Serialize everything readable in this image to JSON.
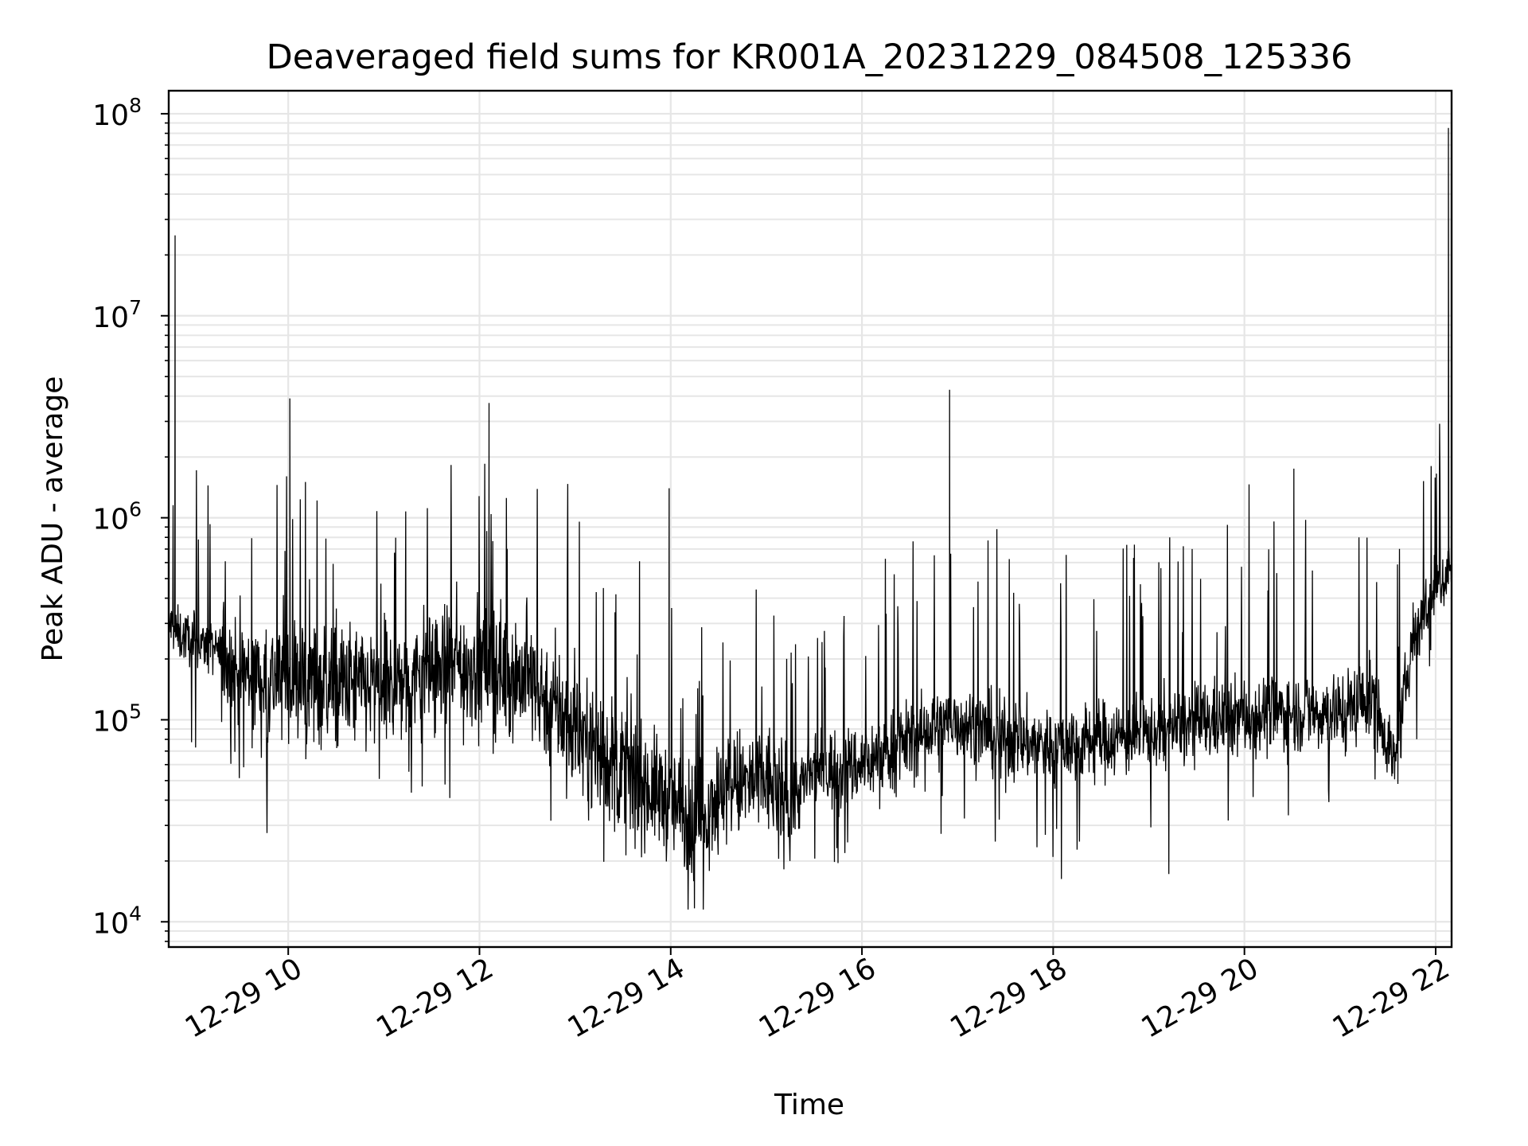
{
  "chart_data": {
    "type": "line",
    "title": "Deaveraged field sums for KR001A_20231229_084508_125336",
    "xlabel": "Time",
    "ylabel": "Peak ADU - average",
    "yscale": "log",
    "ylim": [
      7500,
      130000000
    ],
    "xlim": [
      "12-29 08:45",
      "12-29 22:10"
    ],
    "grid": true,
    "line_color": "#000000",
    "grid_color": "#e6e6e6",
    "x_ticks": [
      "12-29 10",
      "12-29 12",
      "12-29 14",
      "12-29 16",
      "12-29 18",
      "12-29 20",
      "12-29 22"
    ],
    "y_ticks": [
      {
        "value": 10000,
        "base": "10",
        "exp": "4"
      },
      {
        "value": 100000,
        "base": "10",
        "exp": "5"
      },
      {
        "value": 1000000,
        "base": "10",
        "exp": "6"
      },
      {
        "value": 10000000,
        "base": "10",
        "exp": "7"
      },
      {
        "value": 100000000,
        "base": "10",
        "exp": "8"
      }
    ],
    "series": [
      {
        "x": [
          "12-29 08:45",
          "12-29 08:52",
          "12-29 09:00",
          "12-29 09:15",
          "12-29 09:30",
          "12-29 09:45",
          "12-29 10:00",
          "12-29 10:30",
          "12-29 11:00",
          "12-29 11:30",
          "12-29 12:00",
          "12-29 12:30",
          "12-29 13:00",
          "12-29 13:30",
          "12-29 14:00",
          "12-29 14:15",
          "12-29 14:30",
          "12-29 15:00",
          "12-29 15:15",
          "12-29 15:30",
          "12-29 16:00",
          "12-29 16:30",
          "12-29 17:00",
          "12-29 17:30",
          "12-29 18:00",
          "12-29 18:30",
          "12-29 19:00",
          "12-29 19:30",
          "12-29 20:00",
          "12-29 20:30",
          "12-29 21:00",
          "12-29 21:20",
          "12-29 21:35",
          "12-29 21:45",
          "12-29 22:00",
          "12-29 22:05",
          "12-29 22:10"
        ],
        "y": [
          300000,
          260000,
          250000,
          220000,
          170000,
          160000,
          160000,
          150000,
          140000,
          180000,
          190000,
          160000,
          90000,
          55000,
          40000,
          30000,
          45000,
          50000,
          40000,
          55000,
          60000,
          80000,
          100000,
          80000,
          75000,
          80000,
          85000,
          95000,
          105000,
          110000,
          110000,
          130000,
          60000,
          250000,
          450000,
          500000,
          600000
        ]
      }
    ],
    "annotations": [
      {
        "x": "12-29 08:49",
        "y": 25000000
      },
      {
        "x": "12-29 10:01",
        "y": 3900000
      },
      {
        "x": "12-29 12:06",
        "y": 3700000
      },
      {
        "x": "12-29 13:59",
        "y": 1400000
      },
      {
        "x": "12-29 16:55",
        "y": 4300000
      },
      {
        "x": "12-29 20:31",
        "y": 1750000
      },
      {
        "x": "12-29 22:08",
        "y": 85000000
      }
    ]
  }
}
